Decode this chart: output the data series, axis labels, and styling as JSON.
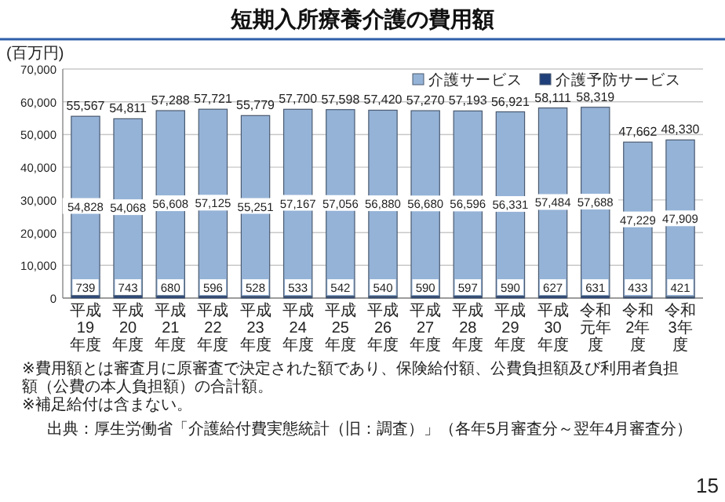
{
  "chart_data": {
    "type": "bar",
    "title": "短期入所療養介護の費用額",
    "ylabel": "(百万円)",
    "stacked": true,
    "categories": [
      "平成19年度",
      "平成20年度",
      "平成21年度",
      "平成22年度",
      "平成23年度",
      "平成24年度",
      "平成25年度",
      "平成26年度",
      "平成27年度",
      "平成28年度",
      "平成29年度",
      "平成30年度",
      "令和元年度",
      "令和2年度",
      "令和3年度"
    ],
    "series": [
      {
        "name": "介護予防サービス",
        "color": "#1f3f7a",
        "values": [
          739,
          743,
          680,
          596,
          528,
          533,
          542,
          540,
          590,
          597,
          590,
          627,
          631,
          433,
          421
        ],
        "value_labels": [
          "739",
          "743",
          "680",
          "596",
          "528",
          "533",
          "542",
          "540",
          "590",
          "597",
          "590",
          "627",
          "631",
          "433",
          "421"
        ]
      },
      {
        "name": "介護サービス",
        "color": "#95b3d7",
        "values": [
          54828,
          54068,
          56608,
          57125,
          55251,
          57167,
          57056,
          56880,
          56680,
          56596,
          56331,
          57484,
          57688,
          47229,
          47909
        ],
        "value_labels": [
          "54,828",
          "54,068",
          "56,608",
          "57,125",
          "55,251",
          "57,167",
          "57,056",
          "56,880",
          "56,680",
          "56,596",
          "56,331",
          "57,484",
          "57,688",
          "47,229",
          "47,909"
        ]
      }
    ],
    "totals": [
      "55,567",
      "54,811",
      "57,288",
      "57,721",
      "55,779",
      "57,700",
      "57,598",
      "57,420",
      "57,270",
      "57,193",
      "56,921",
      "58,111",
      "58,319",
      "47,662",
      "48,330"
    ],
    "ylim": [
      0,
      70000
    ],
    "yticks": [
      {
        "value": 0,
        "label": "0"
      },
      {
        "value": 10000,
        "label": "10,000"
      },
      {
        "value": 20000,
        "label": "20,000"
      },
      {
        "value": 30000,
        "label": "30,000"
      },
      {
        "value": 40000,
        "label": "40,000"
      },
      {
        "value": 50000,
        "label": "50,000"
      },
      {
        "value": 60000,
        "label": "60,000"
      },
      {
        "value": 70000,
        "label": "70,000"
      }
    ],
    "grid": "y",
    "legend": "top right",
    "annotations": [
      "※費用額とは審査月に原審査で決定された額であり、保険給付額、公費負担額及び利用者負担額（公費の本人負担額）の合計額。",
      "※補足給付は含まない。",
      "出典：厚生労働省「介護給付費実態統計（旧：調査）」（各年5月審査分～翌年4月審査分）",
      "15"
    ]
  }
}
